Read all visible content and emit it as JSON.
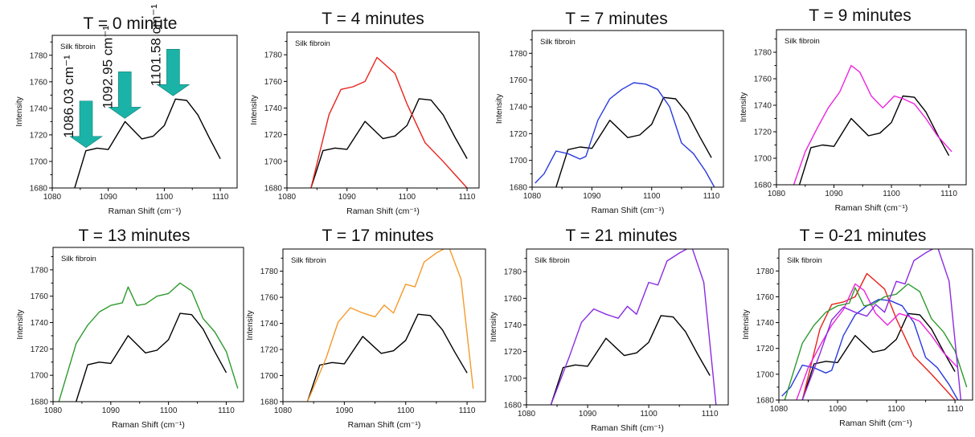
{
  "arrow_color": "#1bb3a8",
  "charts": [
    {
      "title": "T = 0 minute",
      "chart_data": {
        "type": "line",
        "annotation": "Silk fibroin",
        "xlabel": "Raman Shift (cm⁻¹)",
        "ylabel": "Intensity",
        "xlim": [
          1080,
          1113
        ],
        "ylim": [
          1680,
          1795
        ],
        "xticks": [
          1080,
          1090,
          1100,
          1110
        ],
        "yticks": [
          1680,
          1700,
          1720,
          1740,
          1760,
          1780
        ],
        "grid": false,
        "series": [
          {
            "color": "#000000",
            "x": [
              1084,
              1086,
              1088,
              1090,
              1093,
              1096,
              1098,
              1100,
              1102,
              1104,
              1106,
              1108,
              1110
            ],
            "y": [
              1680,
              1708,
              1710,
              1709,
              1730,
              1717,
              1719,
              1727,
              1747,
              1746,
              1735,
              1718,
              1702
            ]
          }
        ],
        "peaks": [
          {
            "label": "1086.03 cm⁻¹",
            "x": 1086.03,
            "y": 1708
          },
          {
            "label": "1092.95 cm⁻¹",
            "x": 1092.95,
            "y": 1730
          },
          {
            "label": "1101.58 cm⁻¹",
            "x": 1101.58,
            "y": 1747
          }
        ]
      }
    },
    {
      "title": "T = 4 minutes",
      "chart_data": {
        "type": "line",
        "annotation": "Silk fibroin",
        "xlabel": "Raman Shift (cm⁻¹)",
        "ylabel": "Intensity",
        "xlim": [
          1080,
          1112
        ],
        "ylim": [
          1680,
          1797
        ],
        "xticks": [
          1080,
          1090,
          1100,
          1110
        ],
        "yticks": [
          1680,
          1700,
          1720,
          1740,
          1760,
          1780
        ],
        "grid": false,
        "series": [
          {
            "color": "#000000",
            "x": [
              1084,
              1086,
              1088,
              1090,
              1093,
              1096,
              1098,
              1100,
              1102,
              1104,
              1106,
              1108,
              1110
            ],
            "y": [
              1680,
              1708,
              1710,
              1709,
              1730,
              1717,
              1719,
              1727,
              1747,
              1746,
              1735,
              1718,
              1702
            ]
          },
          {
            "color": "#e8231d",
            "x": [
              1084,
              1087,
              1089,
              1091,
              1093,
              1095,
              1098,
              1100,
              1103,
              1106,
              1108,
              1110
            ],
            "y": [
              1680,
              1735,
              1754,
              1756,
              1760,
              1778,
              1766,
              1743,
              1714,
              1700,
              1690,
              1680
            ]
          }
        ]
      }
    },
    {
      "title": "T = 7 minutes",
      "chart_data": {
        "type": "line",
        "annotation": "Silk fibroin",
        "xlabel": "Raman Shift (cm⁻¹)",
        "ylabel": "Intensity",
        "xlim": [
          1080,
          1112
        ],
        "ylim": [
          1680,
          1797
        ],
        "xticks": [
          1080,
          1090,
          1100,
          1110
        ],
        "yticks": [
          1680,
          1700,
          1720,
          1740,
          1760,
          1780
        ],
        "grid": false,
        "series": [
          {
            "color": "#000000",
            "x": [
              1084,
              1086,
              1088,
              1090,
              1093,
              1096,
              1098,
              1100,
              1102,
              1104,
              1106,
              1108,
              1110
            ],
            "y": [
              1680,
              1708,
              1710,
              1709,
              1730,
              1717,
              1719,
              1727,
              1747,
              1746,
              1735,
              1718,
              1702
            ]
          },
          {
            "color": "#2a3ae0",
            "x": [
              1080.5,
              1082,
              1084,
              1086,
              1088,
              1089,
              1091,
              1093,
              1095,
              1097,
              1099,
              1101,
              1103,
              1105,
              1107,
              1109,
              1110.5
            ],
            "y": [
              1683,
              1690,
              1707,
              1705,
              1701,
              1703,
              1730,
              1746,
              1753,
              1758,
              1757,
              1753,
              1740,
              1713,
              1705,
              1692,
              1680
            ]
          }
        ]
      }
    },
    {
      "title": "T = 9 minutes",
      "chart_data": {
        "type": "line",
        "annotation": "Silk fibroin",
        "xlabel": "Raman Shift (cm⁻¹)",
        "ylabel": "Intensity",
        "xlim": [
          1080,
          1113
        ],
        "ylim": [
          1680,
          1797
        ],
        "xticks": [
          1080,
          1090,
          1100,
          1110
        ],
        "yticks": [
          1680,
          1700,
          1720,
          1740,
          1760,
          1780
        ],
        "grid": false,
        "series": [
          {
            "color": "#000000",
            "x": [
              1084,
              1086,
              1088,
              1090,
              1093,
              1096,
              1098,
              1100,
              1102,
              1104,
              1106,
              1108,
              1110
            ],
            "y": [
              1680,
              1708,
              1710,
              1709,
              1730,
              1717,
              1719,
              1727,
              1747,
              1746,
              1735,
              1718,
              1702
            ]
          },
          {
            "color": "#ee22dd",
            "x": [
              1083,
              1085,
              1087,
              1089,
              1091,
              1093,
              1094.5,
              1096.5,
              1098.5,
              1100.5,
              1102,
              1104,
              1106,
              1108,
              1110.5
            ],
            "y": [
              1680,
              1705,
              1722,
              1738,
              1750,
              1770,
              1765,
              1747,
              1738,
              1747,
              1745,
              1741,
              1730,
              1717,
              1705
            ]
          }
        ]
      }
    },
    {
      "title": "T = 13 minutes",
      "chart_data": {
        "type": "line",
        "annotation": "Silk fibroin",
        "xlabel": "Raman Shift (cm⁻¹)",
        "ylabel": "Intensity",
        "xlim": [
          1080,
          1113
        ],
        "ylim": [
          1680,
          1797
        ],
        "xticks": [
          1080,
          1090,
          1100,
          1110
        ],
        "yticks": [
          1680,
          1700,
          1720,
          1740,
          1760,
          1780
        ],
        "grid": false,
        "series": [
          {
            "color": "#000000",
            "x": [
              1084,
              1086,
              1088,
              1090,
              1093,
              1096,
              1098,
              1100,
              1102,
              1104,
              1106,
              1108,
              1110
            ],
            "y": [
              1680,
              1708,
              1710,
              1709,
              1730,
              1717,
              1719,
              1727,
              1747,
              1746,
              1735,
              1718,
              1702
            ]
          },
          {
            "color": "#2e9a2e",
            "x": [
              1081,
              1084,
              1086,
              1088,
              1090,
              1092,
              1093,
              1094.5,
              1096,
              1098,
              1100,
              1102,
              1104,
              1106,
              1108,
              1110,
              1112
            ],
            "y": [
              1680,
              1724,
              1738,
              1748,
              1753,
              1755,
              1767,
              1753,
              1754,
              1760,
              1762,
              1770,
              1764,
              1743,
              1733,
              1718,
              1690
            ]
          }
        ]
      }
    },
    {
      "title": "T = 17 minutes",
      "chart_data": {
        "type": "line",
        "annotation": "Silk fibroin",
        "xlabel": "Raman Shift (cm⁻¹)",
        "ylabel": "Intensity",
        "xlim": [
          1080,
          1113
        ],
        "ylim": [
          1680,
          1797
        ],
        "xticks": [
          1080,
          1090,
          1100,
          1110
        ],
        "yticks": [
          1680,
          1700,
          1720,
          1740,
          1760,
          1780
        ],
        "grid": false,
        "series": [
          {
            "color": "#000000",
            "x": [
              1084,
              1086,
              1088,
              1090,
              1093,
              1096,
              1098,
              1100,
              1102,
              1104,
              1106,
              1108,
              1110
            ],
            "y": [
              1680,
              1708,
              1710,
              1709,
              1730,
              1717,
              1719,
              1727,
              1747,
              1746,
              1735,
              1718,
              1702
            ]
          },
          {
            "color": "#f59a2a",
            "x": [
              1084,
              1087,
              1089,
              1091,
              1093,
              1095,
              1096.5,
              1098,
              1100,
              1101.5,
              1103,
              1105,
              1107,
              1109,
              1111
            ],
            "y": [
              1680,
              1713,
              1741,
              1752,
              1748,
              1745,
              1754,
              1748,
              1770,
              1768,
              1787,
              1794,
              1799,
              1774,
              1690
            ]
          }
        ]
      }
    },
    {
      "title": "T = 21 minutes",
      "chart_data": {
        "type": "line",
        "annotation": "Silk fibroin",
        "xlabel": "Raman Shift (cm⁻¹)",
        "ylabel": "Intensity",
        "xlim": [
          1080,
          1113
        ],
        "ylim": [
          1680,
          1797
        ],
        "xticks": [
          1080,
          1090,
          1100,
          1110
        ],
        "yticks": [
          1680,
          1700,
          1720,
          1740,
          1760,
          1780
        ],
        "grid": false,
        "series": [
          {
            "color": "#000000",
            "x": [
              1084,
              1086,
              1088,
              1090,
              1093,
              1096,
              1098,
              1100,
              1102,
              1104,
              1106,
              1108,
              1110
            ],
            "y": [
              1680,
              1708,
              1710,
              1709,
              1730,
              1717,
              1719,
              1727,
              1747,
              1746,
              1735,
              1718,
              1702
            ]
          },
          {
            "color": "#8a2be2",
            "x": [
              1084,
              1087,
              1089,
              1091,
              1093,
              1095,
              1096.5,
              1098,
              1100,
              1101.5,
              1103,
              1105,
              1107,
              1109,
              1111
            ],
            "y": [
              1680,
              1716,
              1742,
              1752,
              1748,
              1745,
              1754,
              1748,
              1772,
              1770,
              1788,
              1794,
              1799,
              1772,
              1680
            ]
          }
        ]
      }
    },
    {
      "title": "T = 0-21 minutes",
      "chart_data": {
        "type": "line",
        "annotation": "Silk fibroin",
        "xlabel": "Raman Shift (cm⁻¹)",
        "ylabel": "Intensity",
        "xlim": [
          1080,
          1113
        ],
        "ylim": [
          1680,
          1797
        ],
        "xticks": [
          1080,
          1090,
          1100,
          1110
        ],
        "yticks": [
          1680,
          1700,
          1720,
          1740,
          1760,
          1780
        ],
        "grid": false,
        "series": [
          {
            "color": "#000000",
            "x": [
              1084,
              1086,
              1088,
              1090,
              1093,
              1096,
              1098,
              1100,
              1102,
              1104,
              1106,
              1108,
              1110
            ],
            "y": [
              1680,
              1708,
              1710,
              1709,
              1730,
              1717,
              1719,
              1727,
              1747,
              1746,
              1735,
              1718,
              1702
            ]
          },
          {
            "color": "#e8231d",
            "x": [
              1084,
              1087,
              1089,
              1091,
              1093,
              1095,
              1098,
              1100,
              1103,
              1106,
              1108,
              1110
            ],
            "y": [
              1680,
              1735,
              1754,
              1756,
              1760,
              1778,
              1766,
              1743,
              1714,
              1700,
              1690,
              1680
            ]
          },
          {
            "color": "#2a3ae0",
            "x": [
              1080.5,
              1082,
              1084,
              1086,
              1088,
              1089,
              1091,
              1093,
              1095,
              1097,
              1099,
              1101,
              1103,
              1105,
              1107,
              1109,
              1110.5
            ],
            "y": [
              1683,
              1690,
              1707,
              1705,
              1701,
              1703,
              1730,
              1746,
              1753,
              1758,
              1757,
              1753,
              1740,
              1713,
              1705,
              1692,
              1680
            ]
          },
          {
            "color": "#ee22dd",
            "x": [
              1083,
              1085,
              1087,
              1089,
              1091,
              1093,
              1094.5,
              1096.5,
              1098.5,
              1100.5,
              1102,
              1104,
              1106,
              1108,
              1110.5
            ],
            "y": [
              1680,
              1705,
              1722,
              1738,
              1750,
              1770,
              1765,
              1747,
              1738,
              1747,
              1745,
              1741,
              1730,
              1717,
              1705
            ]
          },
          {
            "color": "#2e9a2e",
            "x": [
              1081,
              1084,
              1086,
              1088,
              1090,
              1092,
              1093,
              1094.5,
              1096,
              1098,
              1100,
              1102,
              1104,
              1106,
              1108,
              1110,
              1112
            ],
            "y": [
              1680,
              1724,
              1738,
              1748,
              1753,
              1755,
              1767,
              1753,
              1754,
              1760,
              1762,
              1770,
              1764,
              1743,
              1733,
              1718,
              1690
            ]
          },
          {
            "color": "#8a2be2",
            "x": [
              1084,
              1087,
              1089,
              1091,
              1093,
              1095,
              1096.5,
              1098,
              1100,
              1101.5,
              1103,
              1105,
              1107,
              1109,
              1111
            ],
            "y": [
              1680,
              1716,
              1742,
              1752,
              1748,
              1745,
              1754,
              1748,
              1772,
              1770,
              1788,
              1794,
              1799,
              1772,
              1680
            ]
          }
        ]
      }
    }
  ]
}
